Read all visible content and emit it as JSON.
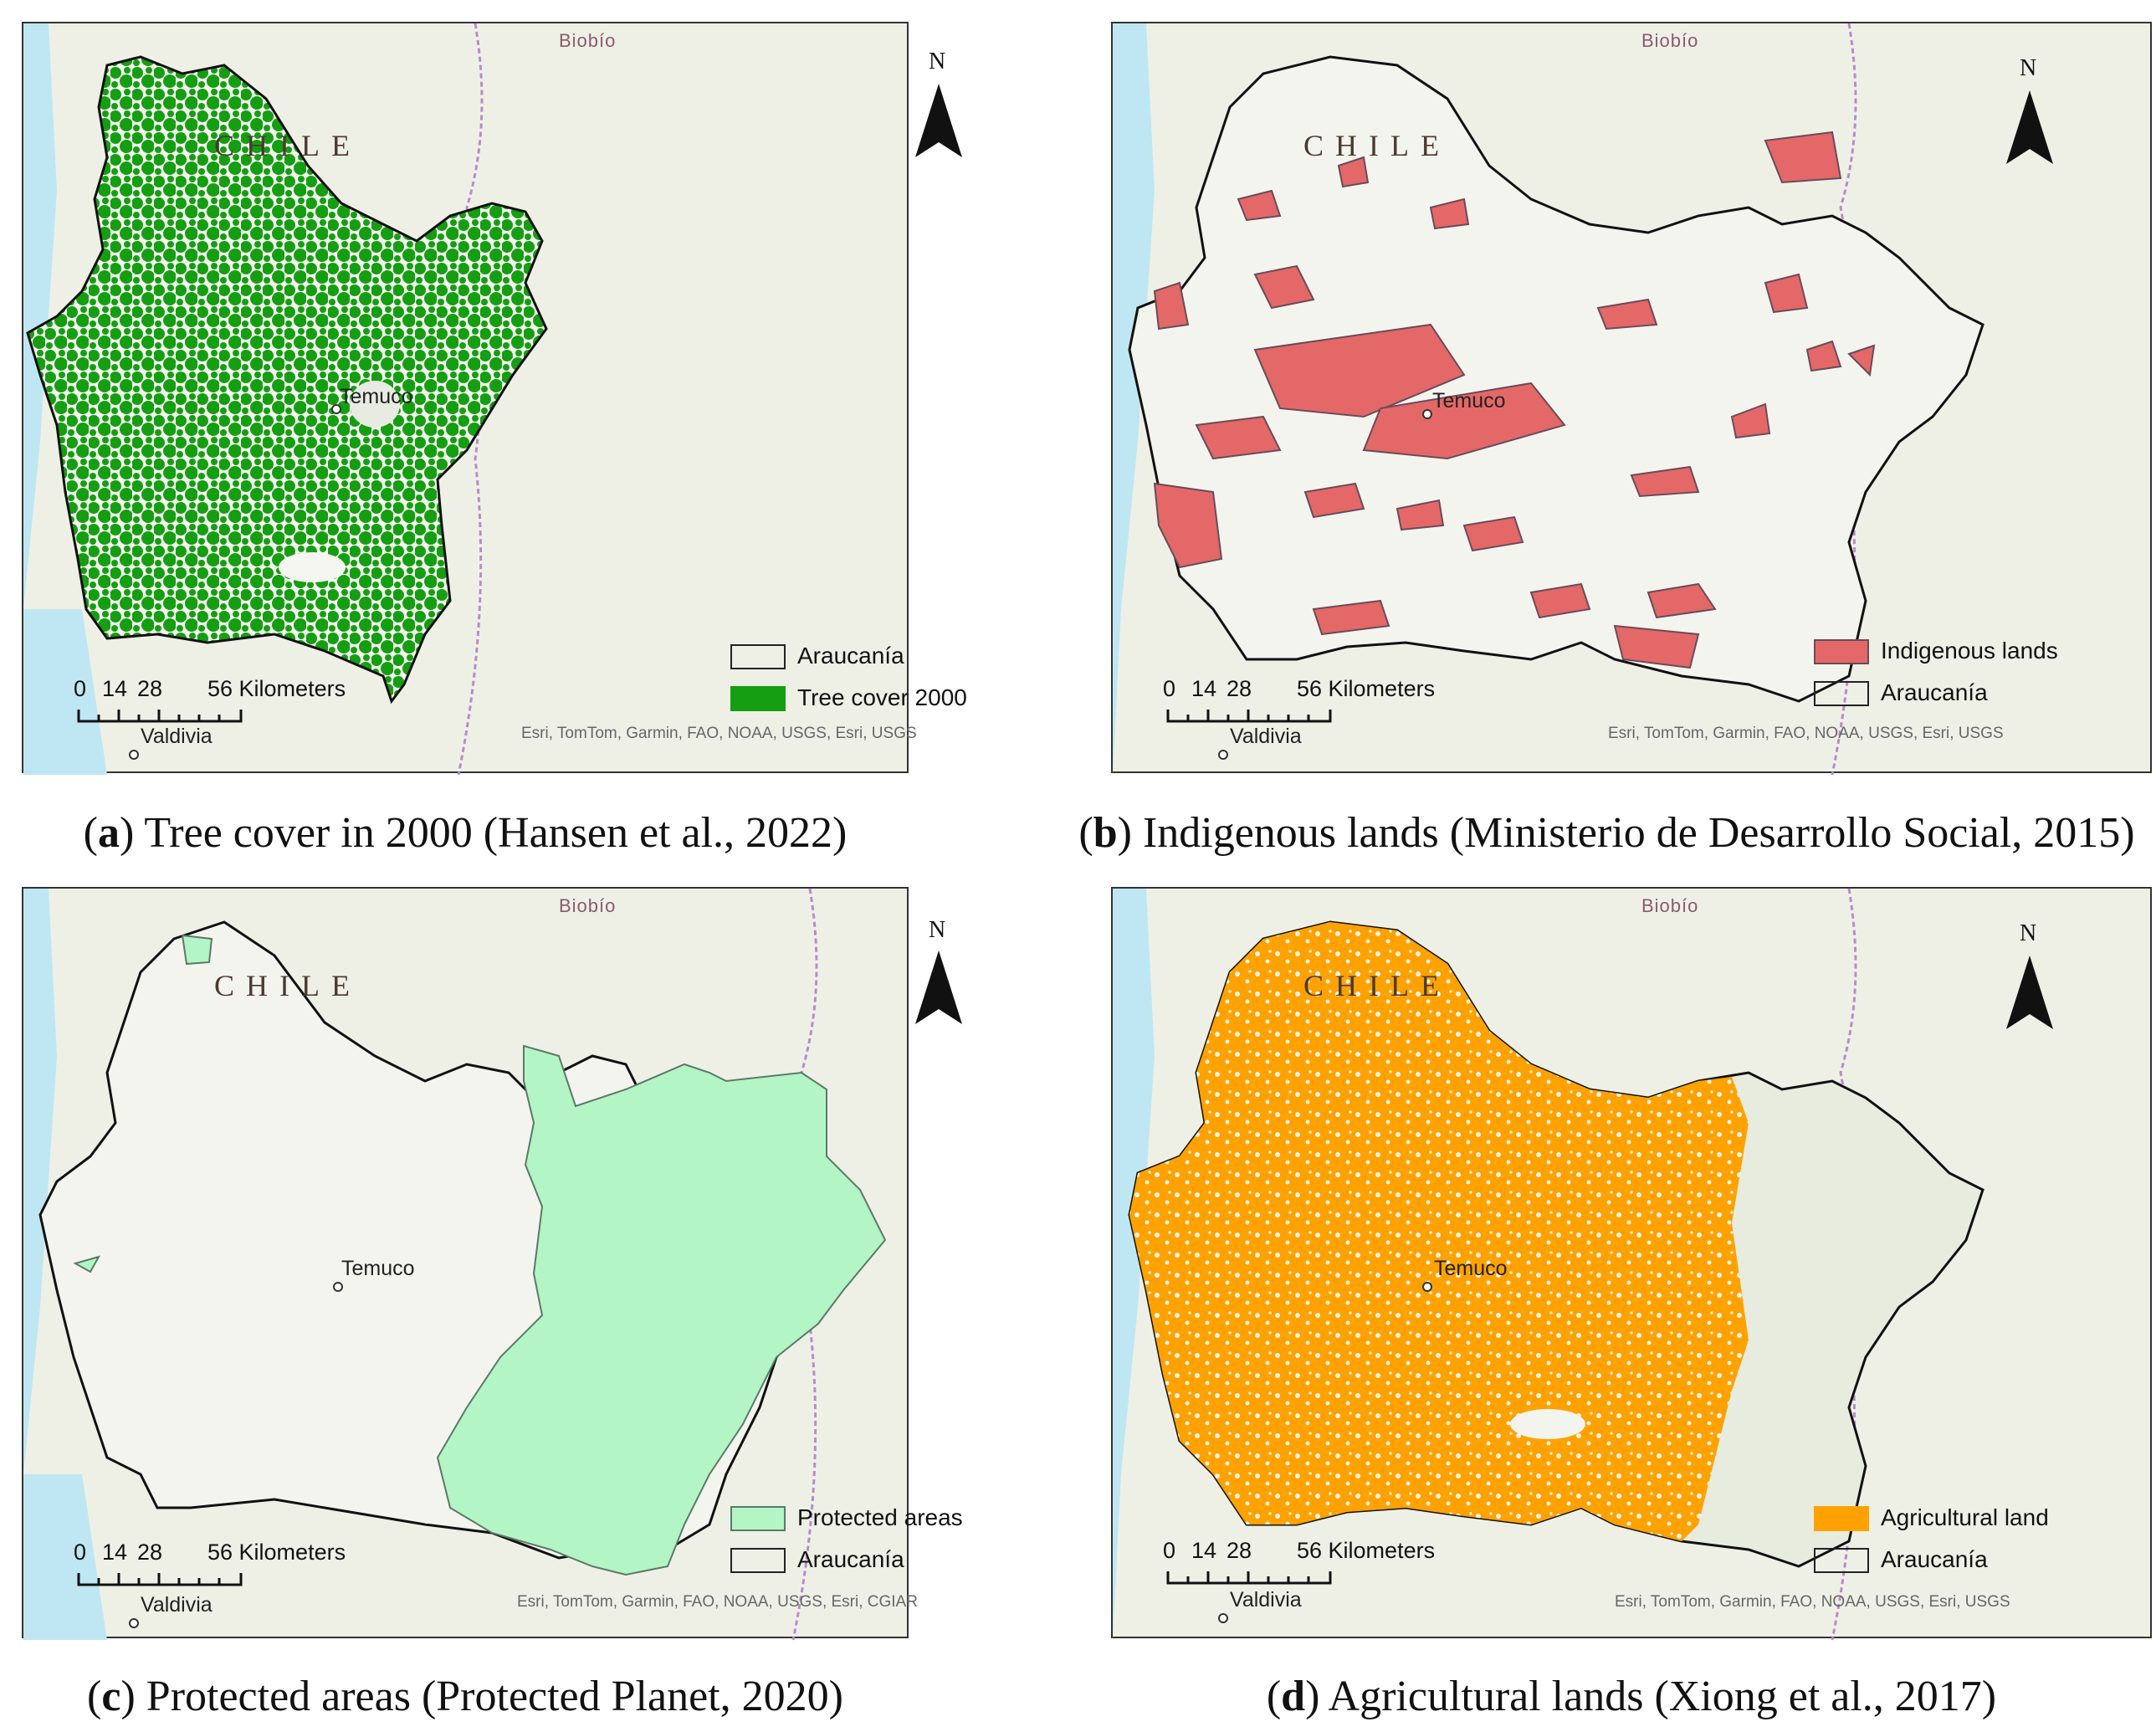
{
  "common": {
    "region_label": "Biobío",
    "country_label": "CHILE",
    "city_temuco": "Temuco",
    "city_valdivia": "Valdivia",
    "north_letter": "N",
    "scale": {
      "t0": "0",
      "t1": "14",
      "t2": "28",
      "t3": "56 Kilometers"
    }
  },
  "colors": {
    "tree_cover": "#159e12",
    "indigenous": "#e46868",
    "protected": "#b3f5c5",
    "agricultural": "#ffa200",
    "water": "#bfe7f3"
  },
  "panels": [
    {
      "caption_letter": "a",
      "caption_text": ") Tree cover in 2000 (Hansen et al., 2022)",
      "legend": [
        {
          "label": "Araucanía"
        },
        {
          "label": "Tree cover 2000"
        }
      ],
      "attribution": "Esri, TomTom, Garmin, FAO, NOAA, USGS, Esri, USGS"
    },
    {
      "caption_letter": "b",
      "caption_text": ") Indigenous lands (Ministerio de Desarrollo Social, 2015)",
      "legend": [
        {
          "label": "Indigenous lands"
        },
        {
          "label": "Araucanía"
        }
      ],
      "attribution": "Esri, TomTom, Garmin, FAO, NOAA, USGS, Esri, USGS"
    },
    {
      "caption_letter": "c",
      "caption_text": ") Protected areas (Protected Planet, 2020)",
      "legend": [
        {
          "label": "Protected areas"
        },
        {
          "label": "Araucanía"
        }
      ],
      "attribution": "Esri, TomTom, Garmin, FAO, NOAA, USGS, Esri, CGIAR"
    },
    {
      "caption_letter": "d",
      "caption_text": ") Agricultural lands (Xiong et al., 2017)",
      "legend": [
        {
          "label": "Agricultural land"
        },
        {
          "label": "Araucanía"
        }
      ],
      "attribution": "Esri, TomTom, Garmin, FAO, NOAA, USGS, Esri, USGS"
    }
  ]
}
